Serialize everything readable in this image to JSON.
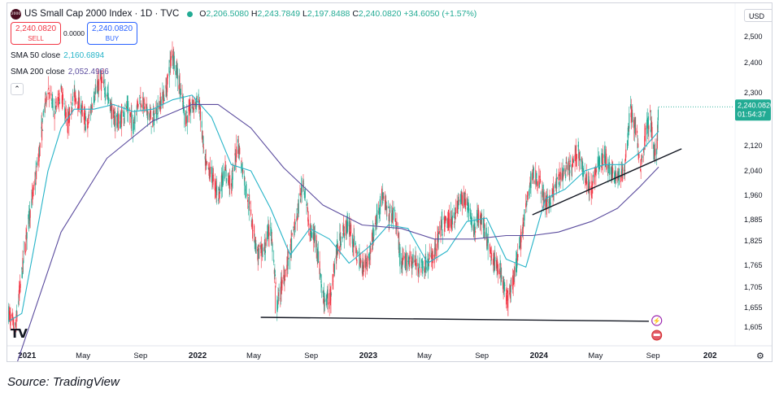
{
  "header": {
    "logo_text": "2000",
    "title": "US Small Cap 2000 Index · 1D · TVC",
    "ohlc": {
      "o_label": "O",
      "o": "2,206.5080",
      "h_label": "H",
      "h": "2,243.7849",
      "l_label": "L",
      "l": "2,197.8488",
      "c_label": "C",
      "c": "2,240.0820",
      "change": "+34.6050 (+1.57%)"
    }
  },
  "trade": {
    "sell_price": "2,240.0820",
    "sell_label": "SELL",
    "spread": "0.0000",
    "buy_price": "2,240.0820",
    "buy_label": "BUY"
  },
  "studies": {
    "sma50_label": "SMA 50 close",
    "sma50_value": "2,160.6894",
    "sma200_label": "SMA 200 close",
    "sma200_value": "2,052.4966",
    "collapse_icon": "chevron-up"
  },
  "currency": "USD",
  "tv_logo": "TV",
  "settings_icon": "gear",
  "last_price_tag": {
    "price": "2,240.0820",
    "countdown": "01:54:37"
  },
  "source_caption": "Source: TradingView",
  "colors": {
    "up": "#22ab94",
    "down": "#f23645",
    "sma50": "#26b4c8",
    "sma200": "#5b4c9e",
    "trendline": "#131722",
    "grid": "#ffffff",
    "price_tag_green": "#22ab94"
  },
  "chart_data": {
    "type": "candlestick",
    "title": "US Small Cap 2000 Index · 1D · TVC",
    "x_ticks": [
      "2021",
      "May",
      "Sep",
      "2022",
      "May",
      "Sep",
      "2023",
      "May",
      "Sep",
      "2024",
      "May",
      "Sep",
      "202"
    ],
    "x_tick_dates": [
      "2021-01-01",
      "2021-05-01",
      "2021-09-01",
      "2022-01-01",
      "2022-05-01",
      "2022-09-01",
      "2023-01-01",
      "2023-05-01",
      "2023-09-01",
      "2024-01-01",
      "2024-05-01",
      "2024-09-01",
      "2025-01-01"
    ],
    "y_ticks": [
      1605,
      1655,
      1705,
      1765,
      1825,
      1885,
      1960,
      2040,
      2120,
      2210,
      2300,
      2400,
      2500
    ],
    "y_tick_labels": [
      "1,605.000",
      "1,655.000",
      "1,705.000",
      "1,765.000",
      "1,825.000",
      "1,885.000",
      "1,960.000",
      "2,040.000",
      "2,120.000",
      "2,210.000",
      "2,300.000",
      "2,400.000",
      "2,500.000"
    ],
    "xlim": [
      "2020-11-20",
      "2025-02-20"
    ],
    "ylim": [
      1570,
      2560
    ],
    "last_close": 2240.082,
    "price_path": [
      [
        "2020-11-23",
        1640
      ],
      [
        "2020-12-07",
        1600
      ],
      [
        "2020-12-21",
        1740
      ],
      [
        "2021-01-04",
        1880
      ],
      [
        "2021-01-18",
        2000
      ],
      [
        "2021-02-01",
        2150
      ],
      [
        "2021-02-15",
        2320
      ],
      [
        "2021-03-01",
        2220
      ],
      [
        "2021-03-15",
        2300
      ],
      [
        "2021-03-29",
        2180
      ],
      [
        "2021-04-12",
        2290
      ],
      [
        "2021-04-26",
        2240
      ],
      [
        "2021-05-10",
        2170
      ],
      [
        "2021-05-24",
        2280
      ],
      [
        "2021-06-07",
        2340
      ],
      [
        "2021-06-21",
        2300
      ],
      [
        "2021-07-05",
        2200
      ],
      [
        "2021-07-19",
        2190
      ],
      [
        "2021-08-02",
        2240
      ],
      [
        "2021-08-16",
        2180
      ],
      [
        "2021-08-30",
        2280
      ],
      [
        "2021-09-13",
        2230
      ],
      [
        "2021-09-27",
        2190
      ],
      [
        "2021-10-11",
        2250
      ],
      [
        "2021-10-25",
        2300
      ],
      [
        "2021-11-08",
        2440
      ],
      [
        "2021-11-22",
        2340
      ],
      [
        "2021-12-06",
        2200
      ],
      [
        "2021-12-20",
        2240
      ],
      [
        "2022-01-03",
        2270
      ],
      [
        "2022-01-17",
        2060
      ],
      [
        "2022-01-31",
        2030
      ],
      [
        "2022-02-14",
        1960
      ],
      [
        "2022-02-28",
        2040
      ],
      [
        "2022-03-14",
        1990
      ],
      [
        "2022-03-28",
        2130
      ],
      [
        "2022-04-11",
        2010
      ],
      [
        "2022-04-25",
        1900
      ],
      [
        "2022-05-09",
        1790
      ],
      [
        "2022-05-23",
        1800
      ],
      [
        "2022-06-06",
        1870
      ],
      [
        "2022-06-20",
        1660
      ],
      [
        "2022-07-04",
        1730
      ],
      [
        "2022-07-18",
        1800
      ],
      [
        "2022-08-01",
        1890
      ],
      [
        "2022-08-15",
        2010
      ],
      [
        "2022-08-29",
        1850
      ],
      [
        "2022-09-12",
        1830
      ],
      [
        "2022-09-26",
        1680
      ],
      [
        "2022-10-10",
        1670
      ],
      [
        "2022-10-24",
        1790
      ],
      [
        "2022-11-07",
        1850
      ],
      [
        "2022-11-21",
        1870
      ],
      [
        "2022-12-05",
        1800
      ],
      [
        "2022-12-19",
        1760
      ],
      [
        "2023-01-02",
        1780
      ],
      [
        "2023-01-16",
        1870
      ],
      [
        "2023-01-30",
        1960
      ],
      [
        "2023-02-13",
        1900
      ],
      [
        "2023-02-27",
        1900
      ],
      [
        "2023-03-13",
        1760
      ],
      [
        "2023-03-27",
        1780
      ],
      [
        "2023-04-10",
        1770
      ],
      [
        "2023-04-24",
        1760
      ],
      [
        "2023-05-08",
        1770
      ],
      [
        "2023-05-22",
        1790
      ],
      [
        "2023-06-05",
        1860
      ],
      [
        "2023-06-19",
        1880
      ],
      [
        "2023-07-03",
        1890
      ],
      [
        "2023-07-17",
        1950
      ],
      [
        "2023-07-31",
        1940
      ],
      [
        "2023-08-14",
        1860
      ],
      [
        "2023-08-28",
        1900
      ],
      [
        "2023-09-11",
        1840
      ],
      [
        "2023-09-25",
        1770
      ],
      [
        "2023-10-09",
        1760
      ],
      [
        "2023-10-23",
        1680
      ],
      [
        "2023-11-06",
        1720
      ],
      [
        "2023-11-20",
        1800
      ],
      [
        "2023-12-04",
        1920
      ],
      [
        "2023-12-18",
        2030
      ],
      [
        "2024-01-01",
        2010
      ],
      [
        "2024-01-15",
        1930
      ],
      [
        "2024-01-29",
        1960
      ],
      [
        "2024-02-12",
        2010
      ],
      [
        "2024-02-26",
        2040
      ],
      [
        "2024-03-11",
        2050
      ],
      [
        "2024-03-25",
        2110
      ],
      [
        "2024-04-08",
        2020
      ],
      [
        "2024-04-22",
        1980
      ],
      [
        "2024-05-06",
        2060
      ],
      [
        "2024-05-20",
        2080
      ],
      [
        "2024-06-03",
        2040
      ],
      [
        "2024-06-17",
        2020
      ],
      [
        "2024-07-01",
        2030
      ],
      [
        "2024-07-15",
        2230
      ],
      [
        "2024-07-29",
        2140
      ],
      [
        "2024-08-05",
        2050
      ],
      [
        "2024-08-19",
        2180
      ],
      [
        "2024-08-26",
        2200
      ],
      [
        "2024-09-03",
        2100
      ],
      [
        "2024-09-09",
        2090
      ],
      [
        "2024-09-13",
        2240
      ]
    ],
    "lows_marked": [
      [
        "2022-06-16",
        1640
      ],
      [
        "2022-10-13",
        1640
      ],
      [
        "2023-10-27",
        1633
      ]
    ],
    "sma50": [
      [
        "2020-11-23",
        1620
      ],
      [
        "2020-12-21",
        1640
      ],
      [
        "2021-01-18",
        1820
      ],
      [
        "2021-02-15",
        2040
      ],
      [
        "2021-03-15",
        2170
      ],
      [
        "2021-04-12",
        2230
      ],
      [
        "2021-05-24",
        2230
      ],
      [
        "2021-07-05",
        2250
      ],
      [
        "2021-08-16",
        2220
      ],
      [
        "2021-09-27",
        2230
      ],
      [
        "2021-11-08",
        2270
      ],
      [
        "2021-12-20",
        2290
      ],
      [
        "2022-01-31",
        2200
      ],
      [
        "2022-03-14",
        2060
      ],
      [
        "2022-04-25",
        2040
      ],
      [
        "2022-06-06",
        1920
      ],
      [
        "2022-07-18",
        1790
      ],
      [
        "2022-08-29",
        1860
      ],
      [
        "2022-10-10",
        1830
      ],
      [
        "2022-11-21",
        1770
      ],
      [
        "2023-01-02",
        1810
      ],
      [
        "2023-02-13",
        1870
      ],
      [
        "2023-03-27",
        1860
      ],
      [
        "2023-05-08",
        1770
      ],
      [
        "2023-06-19",
        1800
      ],
      [
        "2023-07-31",
        1880
      ],
      [
        "2023-09-11",
        1890
      ],
      [
        "2023-10-23",
        1780
      ],
      [
        "2023-12-04",
        1760
      ],
      [
        "2024-01-15",
        1950
      ],
      [
        "2024-02-26",
        1980
      ],
      [
        "2024-04-08",
        2040
      ],
      [
        "2024-05-20",
        2060
      ],
      [
        "2024-07-01",
        2060
      ],
      [
        "2024-08-05",
        2100
      ],
      [
        "2024-09-13",
        2160.6894
      ]
    ],
    "sma200": [
      [
        "2020-11-23",
        1450
      ],
      [
        "2021-03-15",
        1850
      ],
      [
        "2021-06-21",
        2080
      ],
      [
        "2021-09-27",
        2190
      ],
      [
        "2021-12-20",
        2250
      ],
      [
        "2022-02-14",
        2250
      ],
      [
        "2022-04-25",
        2170
      ],
      [
        "2022-07-04",
        2050
      ],
      [
        "2022-09-26",
        1930
      ],
      [
        "2022-12-19",
        1870
      ],
      [
        "2023-03-13",
        1860
      ],
      [
        "2023-05-22",
        1830
      ],
      [
        "2023-08-14",
        1830
      ],
      [
        "2023-10-23",
        1840
      ],
      [
        "2023-12-18",
        1840
      ],
      [
        "2024-02-12",
        1850
      ],
      [
        "2024-04-22",
        1880
      ],
      [
        "2024-06-17",
        1920
      ],
      [
        "2024-08-05",
        1990
      ],
      [
        "2024-09-13",
        2052.4966
      ]
    ],
    "trendlines": [
      {
        "name": "support",
        "from": [
          "2022-05-16",
          1630
        ],
        "to": [
          "2024-08-23",
          1620
        ]
      },
      {
        "name": "rising support",
        "from": [
          "2023-12-18",
          1900
        ],
        "to": [
          "2024-11-01",
          2110
        ]
      }
    ]
  }
}
